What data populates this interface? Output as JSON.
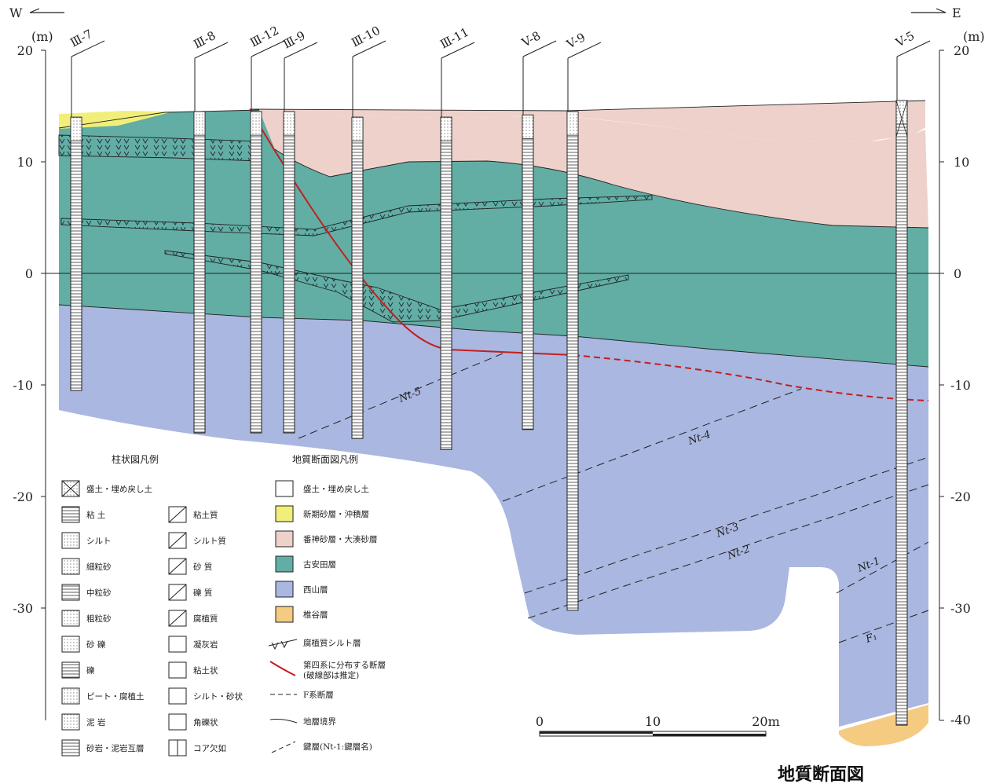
{
  "compass": {
    "west": "W",
    "east": "E"
  },
  "axis": {
    "unit": "(m)",
    "ticks": [
      "20",
      "10",
      "0",
      "-10",
      "-20",
      "-30",
      "-40"
    ]
  },
  "boreholes": [
    {
      "name": "Ⅲ-7",
      "top": 14,
      "bottom": -10.5
    },
    {
      "name": "Ⅲ-8",
      "top": 14.5,
      "bottom": -14.3
    },
    {
      "name": "Ⅲ-12",
      "top": 14.5,
      "bottom": -14.3
    },
    {
      "name": "Ⅲ-9",
      "top": 14.5,
      "bottom": -14.3
    },
    {
      "name": "Ⅲ-10",
      "top": 14,
      "bottom": -14.8
    },
    {
      "name": "Ⅲ-11",
      "top": 14,
      "bottom": -15.8
    },
    {
      "name": "V-8",
      "top": 14.2,
      "bottom": -14.0
    },
    {
      "name": "V-9",
      "top": 14.5,
      "bottom": -30.2
    },
    {
      "name": "V-5",
      "top": 15.5,
      "bottom": -40.5
    }
  ],
  "key_beds": [
    "Nt-5",
    "Nt-4",
    "Nt-3",
    "Nt-2",
    "Nt-1",
    "F₁"
  ],
  "legend_column_title": "柱状図凡例",
  "legend_column_left": [
    "盛土・埋め戻し土",
    "粘 土",
    "シルト",
    "細粒砂",
    "中粒砂",
    "粗粒砂",
    "砂 礫",
    "礫",
    "ピート・腐植土",
    "泥 岩",
    "砂岩・泥岩互層"
  ],
  "legend_column_right": [
    "粘土質",
    "シルト質",
    "砂 質",
    "礫 質",
    "腐植質",
    "凝灰岩",
    "粘土状",
    "シルト・砂状",
    "角礫状",
    "コア欠如"
  ],
  "legend_section_title": "地質断面図凡例",
  "legend_section": [
    {
      "label": "盛土・埋め戻し土",
      "color": "#ffffff"
    },
    {
      "label": "新期砂層・沖積層",
      "color": "#f1ef7a"
    },
    {
      "label": "番神砂層・大湊砂層",
      "color": "#eed1cb"
    },
    {
      "label": "古安田層",
      "color": "#62aea4"
    },
    {
      "label": "西山層",
      "color": "#aab7e0"
    },
    {
      "label": "椎谷層",
      "color": "#f5cb82"
    }
  ],
  "legend_section_lines": [
    "腐植質シルト層",
    "第四系に分布する断層",
    "(破線部は推定)",
    "F系断層",
    "地層境界",
    "鍵層(Nt-1:鍵層名)"
  ],
  "scale_bar": {
    "labels": [
      "0",
      "10",
      "20m"
    ]
  },
  "figure_title": "地質断面図"
}
